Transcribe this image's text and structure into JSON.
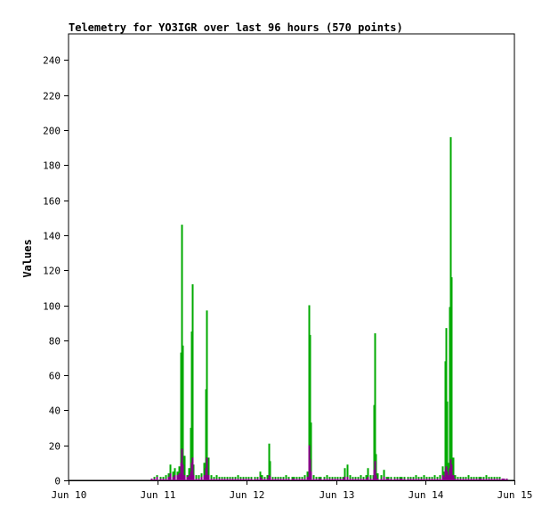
{
  "chart_data": {
    "type": "bar",
    "title": "Telemetry for YO3IGR over last 96 hours (570 points)",
    "ylabel": "Values",
    "xlabel": "",
    "ylim": [
      0,
      255
    ],
    "yticks": [
      0,
      20,
      40,
      60,
      80,
      100,
      120,
      140,
      160,
      180,
      200,
      220,
      240
    ],
    "xlim_hours": [
      0,
      120
    ],
    "xticks": [
      {
        "label": "Jun 10",
        "hour": 0
      },
      {
        "label": "Jun 11",
        "hour": 24
      },
      {
        "label": "Jun 12",
        "hour": 48
      },
      {
        "label": "Jun 13",
        "hour": 72
      },
      {
        "label": "Jun 14",
        "hour": 96
      },
      {
        "label": "Jun 15",
        "hour": 120
      }
    ],
    "series": [
      {
        "color": "#00aa00",
        "points": [
          [
            22.3,
            1
          ],
          [
            23,
            2
          ],
          [
            23.7,
            3
          ],
          [
            24.6,
            2
          ],
          [
            25.5,
            2
          ],
          [
            26.2,
            3
          ],
          [
            26.8,
            4
          ],
          [
            27.3,
            9
          ],
          [
            28,
            5
          ],
          [
            28.6,
            7
          ],
          [
            29.2,
            5
          ],
          [
            29.7,
            8
          ],
          [
            30.2,
            73
          ],
          [
            30.45,
            146
          ],
          [
            30.7,
            77
          ],
          [
            31.2,
            14
          ],
          [
            31.8,
            3
          ],
          [
            32.4,
            7
          ],
          [
            32.8,
            30
          ],
          [
            33.05,
            85
          ],
          [
            33.3,
            112
          ],
          [
            33.6,
            9
          ],
          [
            34.3,
            3
          ],
          [
            35,
            3
          ],
          [
            35.7,
            4
          ],
          [
            36.3,
            10
          ],
          [
            36.9,
            52
          ],
          [
            37.2,
            97
          ],
          [
            37.6,
            13
          ],
          [
            38.3,
            3
          ],
          [
            39,
            2
          ],
          [
            39.8,
            3
          ],
          [
            40.5,
            2
          ],
          [
            41.2,
            2
          ],
          [
            42,
            2
          ],
          [
            42.7,
            2
          ],
          [
            43.4,
            2
          ],
          [
            44.1,
            2
          ],
          [
            44.8,
            2
          ],
          [
            45.6,
            3
          ],
          [
            46.3,
            2
          ],
          [
            47,
            2
          ],
          [
            47.7,
            2
          ],
          [
            48.4,
            2
          ],
          [
            49.2,
            2
          ],
          [
            50,
            2
          ],
          [
            50.7,
            2
          ],
          [
            51.4,
            5
          ],
          [
            52,
            3
          ],
          [
            52.8,
            2
          ],
          [
            53.5,
            3
          ],
          [
            53.9,
            21
          ],
          [
            54.2,
            11
          ],
          [
            54.8,
            2
          ],
          [
            55.5,
            2
          ],
          [
            56.3,
            2
          ],
          [
            57,
            2
          ],
          [
            57.7,
            2
          ],
          [
            58.4,
            3
          ],
          [
            59.2,
            2
          ],
          [
            60,
            2
          ],
          [
            60.7,
            2
          ],
          [
            61.4,
            2
          ],
          [
            62.1,
            2
          ],
          [
            62.8,
            2
          ],
          [
            63.5,
            3
          ],
          [
            64.3,
            5
          ],
          [
            64.6,
            100
          ],
          [
            64.9,
            83
          ],
          [
            65.2,
            33
          ],
          [
            65.8,
            3
          ],
          [
            66.5,
            2
          ],
          [
            67.2,
            2
          ],
          [
            67.9,
            2
          ],
          [
            68.7,
            2
          ],
          [
            69.4,
            3
          ],
          [
            70.1,
            2
          ],
          [
            70.8,
            2
          ],
          [
            71.5,
            2
          ],
          [
            72.3,
            2
          ],
          [
            73,
            2
          ],
          [
            73.7,
            2
          ],
          [
            74.3,
            7
          ],
          [
            75,
            9
          ],
          [
            75.6,
            3
          ],
          [
            76.4,
            2
          ],
          [
            77.1,
            2
          ],
          [
            77.8,
            2
          ],
          [
            78.5,
            3
          ],
          [
            79.2,
            2
          ],
          [
            79.9,
            3
          ],
          [
            80.5,
            7
          ],
          [
            81.2,
            3
          ],
          [
            81.8,
            3
          ],
          [
            82.1,
            43
          ],
          [
            82.35,
            84
          ],
          [
            82.6,
            15
          ],
          [
            83.2,
            4
          ],
          [
            84,
            3
          ],
          [
            84.7,
            6
          ],
          [
            85.4,
            2
          ],
          [
            86.1,
            2
          ],
          [
            86.8,
            2
          ],
          [
            87.6,
            2
          ],
          [
            88.3,
            2
          ],
          [
            89,
            2
          ],
          [
            89.7,
            2
          ],
          [
            90.4,
            2
          ],
          [
            91.2,
            2
          ],
          [
            91.9,
            2
          ],
          [
            92.6,
            2
          ],
          [
            93.4,
            3
          ],
          [
            94.1,
            2
          ],
          [
            94.8,
            2
          ],
          [
            95.6,
            3
          ],
          [
            96.3,
            2
          ],
          [
            97,
            2
          ],
          [
            97.7,
            2
          ],
          [
            98.4,
            3
          ],
          [
            99.2,
            2
          ],
          [
            99.9,
            3
          ],
          [
            100.5,
            8
          ],
          [
            101,
            5
          ],
          [
            101.3,
            68
          ],
          [
            101.55,
            87
          ],
          [
            101.8,
            45
          ],
          [
            102.2,
            10
          ],
          [
            102.5,
            99
          ],
          [
            102.75,
            196
          ],
          [
            103,
            116
          ],
          [
            103.4,
            13
          ],
          [
            104,
            3
          ],
          [
            104.7,
            2
          ],
          [
            105.4,
            2
          ],
          [
            106.1,
            2
          ],
          [
            106.8,
            2
          ],
          [
            107.5,
            3
          ],
          [
            108.2,
            2
          ],
          [
            108.9,
            2
          ],
          [
            109.6,
            2
          ],
          [
            110.3,
            2
          ],
          [
            111,
            2
          ],
          [
            111.7,
            2
          ],
          [
            112.4,
            3
          ],
          [
            113.1,
            2
          ],
          [
            113.8,
            2
          ],
          [
            114.5,
            2
          ],
          [
            115.2,
            2
          ],
          [
            115.9,
            2
          ],
          [
            116.6,
            1
          ],
          [
            117.2,
            1
          ],
          [
            117.8,
            1
          ]
        ]
      },
      {
        "color": "#880088",
        "points": [
          [
            22.3,
            1
          ],
          [
            23,
            1
          ],
          [
            23.7,
            2
          ],
          [
            24.6,
            1
          ],
          [
            25.5,
            1
          ],
          [
            26.2,
            1
          ],
          [
            26.8,
            2
          ],
          [
            27.3,
            4
          ],
          [
            28,
            2
          ],
          [
            28.6,
            3
          ],
          [
            29.2,
            3
          ],
          [
            29.7,
            4
          ],
          [
            30.2,
            10
          ],
          [
            30.45,
            18
          ],
          [
            30.7,
            9
          ],
          [
            31.2,
            3
          ],
          [
            31.8,
            2
          ],
          [
            32.4,
            3
          ],
          [
            32.8,
            5
          ],
          [
            33.05,
            10
          ],
          [
            33.3,
            13
          ],
          [
            33.6,
            3
          ],
          [
            34.3,
            1
          ],
          [
            35,
            1
          ],
          [
            35.7,
            2
          ],
          [
            36.3,
            3
          ],
          [
            36.9,
            7
          ],
          [
            37.2,
            13
          ],
          [
            37.6,
            3
          ],
          [
            38.3,
            1
          ],
          [
            39,
            1
          ],
          [
            39.8,
            1
          ],
          [
            40.5,
            1
          ],
          [
            41.2,
            1
          ],
          [
            42,
            1
          ],
          [
            42.7,
            1
          ],
          [
            43.4,
            1
          ],
          [
            44.1,
            1
          ],
          [
            44.8,
            1
          ],
          [
            45.6,
            1
          ],
          [
            46.3,
            1
          ],
          [
            47,
            1
          ],
          [
            47.7,
            1
          ],
          [
            48.4,
            1
          ],
          [
            49.2,
            1
          ],
          [
            50,
            1
          ],
          [
            50.7,
            1
          ],
          [
            51.4,
            2
          ],
          [
            52,
            1
          ],
          [
            52.8,
            1
          ],
          [
            53.5,
            1
          ],
          [
            53.9,
            3
          ],
          [
            54.2,
            2
          ],
          [
            54.8,
            1
          ],
          [
            55.5,
            1
          ],
          [
            56.3,
            1
          ],
          [
            57,
            1
          ],
          [
            57.7,
            1
          ],
          [
            58.4,
            1
          ],
          [
            59.2,
            1
          ],
          [
            60,
            1
          ],
          [
            60.7,
            1
          ],
          [
            61.4,
            1
          ],
          [
            62.1,
            1
          ],
          [
            62.8,
            1
          ],
          [
            63.5,
            1
          ],
          [
            64.3,
            2
          ],
          [
            64.6,
            20
          ],
          [
            64.9,
            12
          ],
          [
            65.2,
            5
          ],
          [
            65.8,
            1
          ],
          [
            66.5,
            1
          ],
          [
            67.2,
            1
          ],
          [
            67.9,
            1
          ],
          [
            68.7,
            1
          ],
          [
            69.4,
            1
          ],
          [
            70.1,
            1
          ],
          [
            70.8,
            1
          ],
          [
            71.5,
            1
          ],
          [
            72.3,
            1
          ],
          [
            73,
            1
          ],
          [
            73.7,
            1
          ],
          [
            74.3,
            2
          ],
          [
            75,
            2
          ],
          [
            75.6,
            1
          ],
          [
            76.4,
            1
          ],
          [
            77.1,
            1
          ],
          [
            77.8,
            1
          ],
          [
            78.5,
            1
          ],
          [
            79.2,
            1
          ],
          [
            79.9,
            1
          ],
          [
            80.5,
            2
          ],
          [
            81.2,
            1
          ],
          [
            81.8,
            1
          ],
          [
            82.1,
            6
          ],
          [
            82.35,
            11
          ],
          [
            82.6,
            3
          ],
          [
            83.2,
            1
          ],
          [
            84,
            1
          ],
          [
            84.7,
            2
          ],
          [
            85.4,
            1
          ],
          [
            86.1,
            1
          ],
          [
            86.8,
            1
          ],
          [
            87.6,
            1
          ],
          [
            88.3,
            1
          ],
          [
            89,
            1
          ],
          [
            89.7,
            1
          ],
          [
            90.4,
            1
          ],
          [
            91.2,
            1
          ],
          [
            91.9,
            1
          ],
          [
            92.6,
            1
          ],
          [
            93.4,
            1
          ],
          [
            94.1,
            1
          ],
          [
            94.8,
            1
          ],
          [
            95.6,
            1
          ],
          [
            96.3,
            1
          ],
          [
            97,
            1
          ],
          [
            97.7,
            1
          ],
          [
            98.4,
            1
          ],
          [
            99.2,
            1
          ],
          [
            99.9,
            1
          ],
          [
            100.5,
            3
          ],
          [
            101,
            2
          ],
          [
            101.3,
            6
          ],
          [
            101.55,
            8
          ],
          [
            101.8,
            5
          ],
          [
            102.2,
            3
          ],
          [
            102.5,
            7
          ],
          [
            102.75,
            12
          ],
          [
            103,
            9
          ],
          [
            103.4,
            3
          ],
          [
            104,
            1
          ],
          [
            104.7,
            1
          ],
          [
            105.4,
            1
          ],
          [
            106.1,
            1
          ],
          [
            106.8,
            1
          ],
          [
            107.5,
            1
          ],
          [
            108.2,
            1
          ],
          [
            108.9,
            1
          ],
          [
            109.6,
            1
          ],
          [
            110.3,
            1
          ],
          [
            111,
            1
          ],
          [
            111.7,
            1
          ],
          [
            112.4,
            1
          ],
          [
            113.1,
            1
          ],
          [
            113.8,
            1
          ],
          [
            114.5,
            1
          ],
          [
            115.2,
            1
          ],
          [
            115.9,
            1
          ],
          [
            116.6,
            1
          ],
          [
            117.2,
            1
          ],
          [
            117.8,
            1
          ]
        ]
      }
    ]
  }
}
